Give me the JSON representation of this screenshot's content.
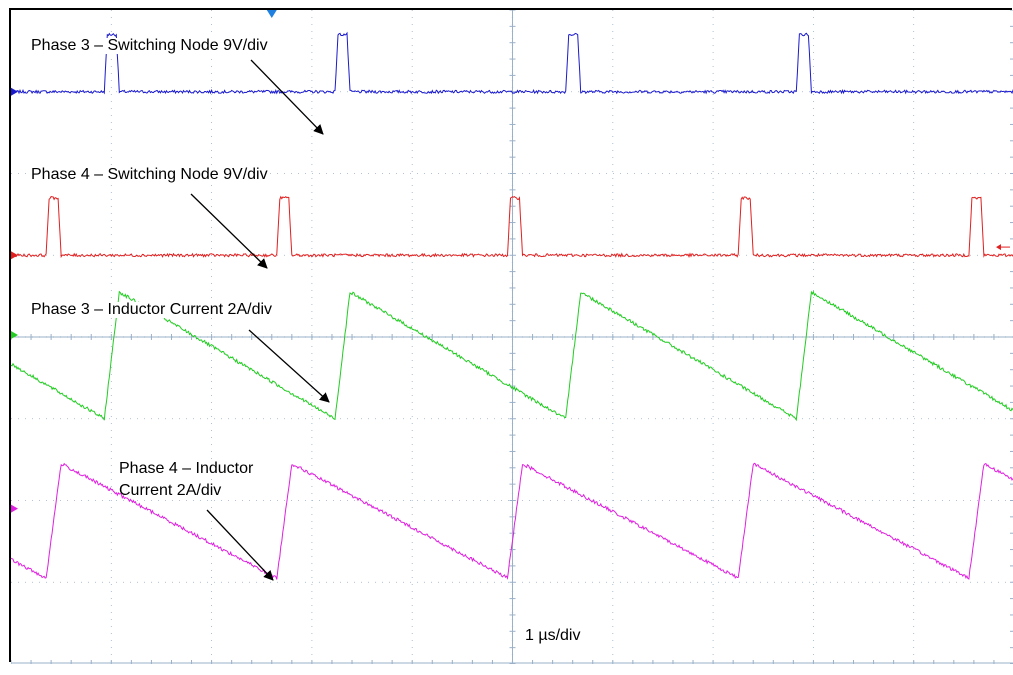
{
  "labels": {
    "ch3_switch": "Phase 3 – Switching Node 9V/div",
    "ch4_switch": "Phase 4 – Switching Node 9V/div",
    "ch3_current": "Phase 3 – Inductor Current 2A/div",
    "ch4_current_line1": "Phase 4 – Inductor",
    "ch4_current_line2": "Current 2A/div",
    "timebase": "1 µs/div"
  },
  "colors": {
    "ch3_switch": "#1a1acc",
    "ch4_switch": "#e02020",
    "ch3_current": "#22cc22",
    "ch4_current": "#e020e0",
    "grid": "#9ab0c8"
  },
  "chart_data": {
    "type": "line",
    "title": "",
    "xlabel": "1 µs/div",
    "ylabel": "",
    "grid": "on",
    "x_divisions": 10,
    "y_divisions": 8,
    "period_us": 2.3,
    "series": [
      {
        "name": "Phase 3 – Switching Node 9V/div",
        "kind": "pulse",
        "baseline_div": 7.0,
        "high_div": 7.7,
        "pulse_start_us": [
          0.93,
          3.23,
          5.53,
          7.83
        ],
        "pulse_width_us": 0.15
      },
      {
        "name": "Phase 4 – Switching Node 9V/div",
        "kind": "pulse",
        "baseline_div": 5.0,
        "high_div": 5.7,
        "pulse_start_us": [
          0.35,
          2.65,
          4.95,
          7.25,
          9.55
        ],
        "pulse_width_us": 0.15
      },
      {
        "name": "Phase 3 – Inductor Current 2A/div",
        "kind": "triangle",
        "low_div": 3.0,
        "high_div": 4.55,
        "valley_us": [
          0.93,
          3.23,
          5.53,
          7.83
        ],
        "peak_us": [
          1.08,
          3.38,
          5.68,
          7.98
        ]
      },
      {
        "name": "Phase 4 – Inductor Current 2A/div",
        "kind": "triangle",
        "low_div": 1.05,
        "high_div": 2.45,
        "valley_us": [
          0.35,
          2.65,
          4.95,
          7.25,
          9.55
        ],
        "peak_us": [
          0.5,
          2.8,
          5.1,
          7.4,
          9.7
        ]
      }
    ]
  }
}
